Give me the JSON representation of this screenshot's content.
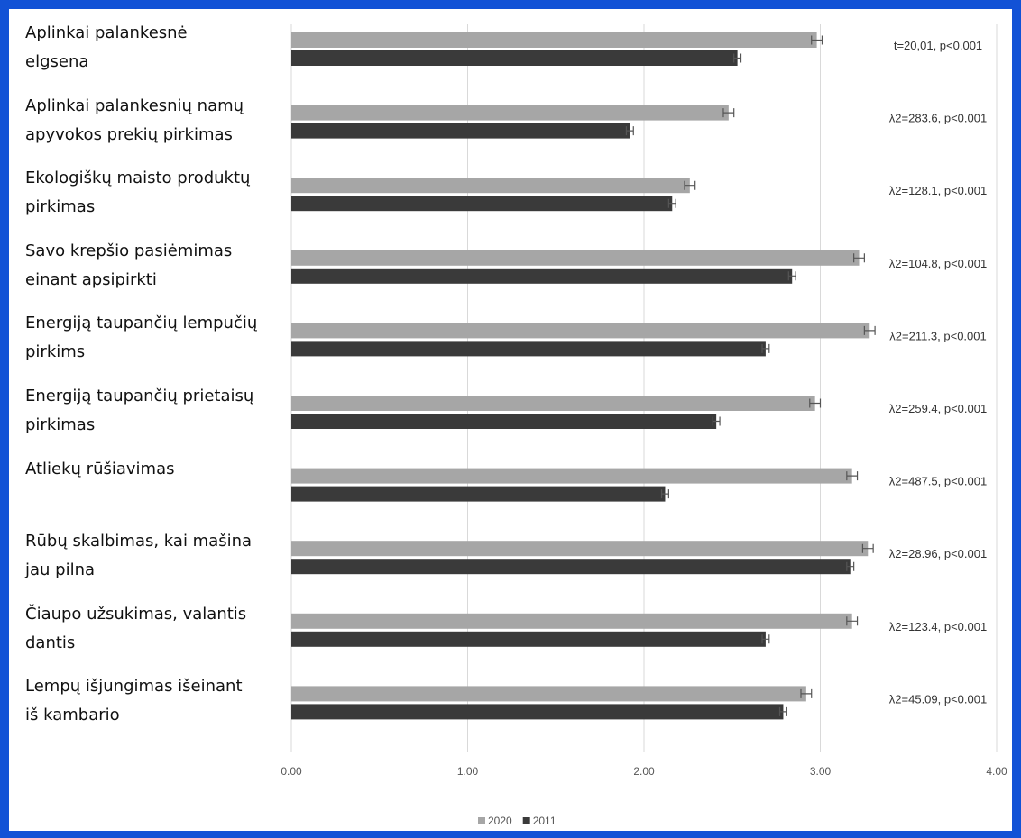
{
  "chart_data": {
    "type": "bar",
    "orientation": "horizontal",
    "categories": [
      "Aplinkai palankesnė\nelgsena",
      "Aplinkai palankesnių namų\napyvokos prekių pirkimas",
      "Ekologiškų maisto produktų\npirkimas",
      "Savo krepšio pasiėmimas\neinant apsipirkti",
      "Energiją taupančių lempučių\npirkims",
      "Energiją taupančių prietaisų\npirkimas",
      "Atliekų rūšiavimas",
      "Rūbų skalbimas, kai mašina\njau pilna",
      "Čiaupo užsukimas, valantis\ndantis",
      "Lempų išjungimas išeinant\niš kambario"
    ],
    "series": [
      {
        "name": "2020",
        "color": "#a6a6a6",
        "values": [
          2.98,
          2.48,
          2.26,
          3.22,
          3.28,
          2.97,
          3.18,
          3.27,
          3.18,
          2.92
        ],
        "errors": [
          0.03,
          0.03,
          0.03,
          0.03,
          0.03,
          0.03,
          0.03,
          0.03,
          0.03,
          0.03
        ]
      },
      {
        "name": "2011",
        "color": "#3a3a3a",
        "values": [
          2.53,
          1.92,
          2.16,
          2.84,
          2.69,
          2.41,
          2.12,
          3.17,
          2.69,
          2.79
        ],
        "errors": [
          0.02,
          0.02,
          0.02,
          0.02,
          0.02,
          0.02,
          0.02,
          0.02,
          0.02,
          0.02
        ]
      }
    ],
    "annotations": [
      "t=20,01, p<0.001",
      "λ2=283.6, p<0.001",
      "λ2=128.1, p<0.001",
      "λ2=104.8, p<0.001",
      "λ2=211.3, p<0.001",
      "λ2=259.4, p<0.001",
      "λ2=487.5, p<0.001",
      "λ2=28.96, p<0.001",
      "λ2=123.4, p<0.001",
      "λ2=45.09, p<0.001"
    ],
    "xlim": [
      0,
      4
    ],
    "xticks": [
      {
        "value": 0,
        "label": "0.00"
      },
      {
        "value": 1,
        "label": "1.00"
      },
      {
        "value": 2,
        "label": "2.00"
      },
      {
        "value": 3,
        "label": "3.00"
      },
      {
        "value": 4,
        "label": "4.00"
      }
    ],
    "grid": true,
    "legend": "bottom"
  }
}
